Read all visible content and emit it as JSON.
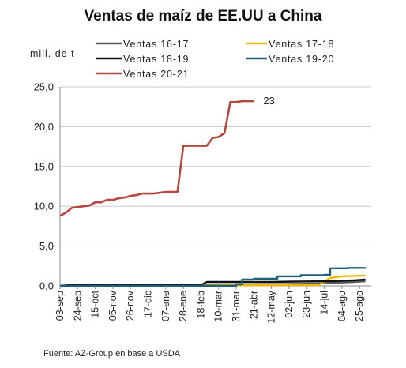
{
  "chart_data": {
    "type": "line",
    "title": "Ventas de maíz de EE.UU a China",
    "ylabel": "mill. de t",
    "ylim": [
      0,
      25
    ],
    "yticks": [
      0,
      5,
      10,
      15,
      20,
      25
    ],
    "ytick_labels": [
      "0,0",
      "5,0",
      "10,0",
      "15,0",
      "20,0",
      "25,0"
    ],
    "grid": true,
    "legend_position": "top",
    "x_categories": [
      "03-sep",
      "24-sep",
      "15-oct",
      "05-nov",
      "26-nov",
      "17-dic",
      "07-ene",
      "28-ene",
      "18-feb",
      "10-mar",
      "31-mar",
      "21-abr",
      "12-may",
      "02-jun",
      "23-jun",
      "14-jul",
      "04-ago",
      "25-ago"
    ],
    "week_labels_every": 3,
    "annotation": {
      "text": "23",
      "series": "Ventas 20-21"
    },
    "source": "Fuente: AZ-Group en base a USDA",
    "series": [
      {
        "name": "Ventas 16-17",
        "color": "#595959",
        "x": [
          0,
          2,
          24,
          36,
          40,
          44,
          50,
          52
        ],
        "y": [
          0.0,
          0.1,
          0.15,
          0.2,
          0.25,
          0.3,
          0.5,
          0.6
        ]
      },
      {
        "name": "Ventas 17-18",
        "color": "#f5b800",
        "x": [
          0,
          44,
          46,
          48,
          52
        ],
        "y": [
          0.0,
          0.1,
          1.0,
          1.2,
          1.3
        ]
      },
      {
        "name": "Ventas 18-19",
        "color": "#111111",
        "x": [
          0,
          2,
          24,
          25,
          30,
          36,
          40,
          46,
          50,
          52
        ],
        "y": [
          0.0,
          0.1,
          0.1,
          0.5,
          0.5,
          0.5,
          0.55,
          0.6,
          0.7,
          0.8
        ]
      },
      {
        "name": "Ventas 19-20",
        "color": "#1f5f7a",
        "x": [
          0,
          30,
          31,
          33,
          36,
          37,
          40,
          41,
          45,
          46,
          49,
          52
        ],
        "y": [
          0.0,
          0.2,
          0.8,
          0.9,
          0.9,
          1.2,
          1.2,
          1.35,
          1.4,
          2.2,
          2.25,
          2.3
        ],
        "step": true
      },
      {
        "name": "Ventas 20-21",
        "color": "#b5473f",
        "x": [
          0,
          1,
          2,
          3,
          4,
          5,
          6,
          7,
          8,
          9,
          10,
          11,
          12,
          13,
          14,
          15,
          16,
          17,
          18,
          19,
          20,
          21,
          22,
          23,
          24,
          25,
          26,
          27,
          28,
          29,
          30,
          31,
          32,
          33
        ],
        "y": [
          8.8,
          9.2,
          9.8,
          9.9,
          10.0,
          10.1,
          10.5,
          10.5,
          10.8,
          10.8,
          11.0,
          11.1,
          11.3,
          11.4,
          11.6,
          11.6,
          11.6,
          11.7,
          11.8,
          11.8,
          11.8,
          17.6,
          17.6,
          17.6,
          17.6,
          17.6,
          18.6,
          18.7,
          19.2,
          23.1,
          23.1,
          23.2,
          23.2,
          23.2
        ]
      }
    ]
  }
}
